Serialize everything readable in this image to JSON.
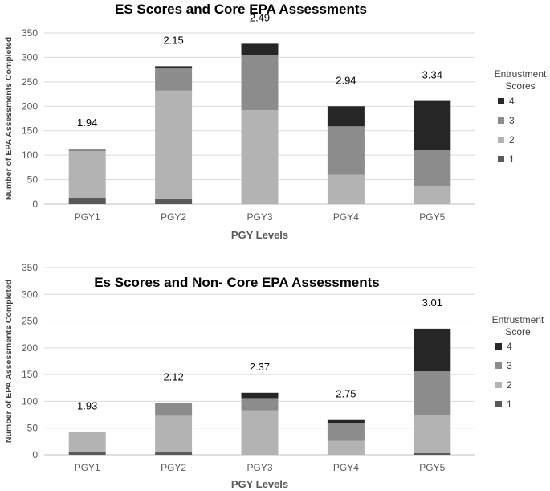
{
  "chart_data": [
    {
      "type": "bar",
      "stacked": true,
      "title": "ES Scores and Core EPA Assessments",
      "xlabel": "PGY Levels",
      "ylabel": "Number of EPA Assessments Completed",
      "ylim": [
        0,
        350
      ],
      "yticks": [
        0,
        50,
        100,
        150,
        200,
        250,
        300,
        350
      ],
      "grid": true,
      "categories": [
        "PGY1",
        "PGY2",
        "PGY3",
        "PGY4",
        "PGY5"
      ],
      "series": [
        {
          "name": "1",
          "color": "#595959",
          "values": [
            12,
            10,
            0,
            0,
            0
          ]
        },
        {
          "name": "2",
          "color": "#b3b3b3",
          "values": [
            96,
            222,
            192,
            60,
            36
          ]
        },
        {
          "name": "3",
          "color": "#8c8c8c",
          "values": [
            5,
            47,
            113,
            99,
            74
          ]
        },
        {
          "name": "4",
          "color": "#262626",
          "values": [
            0,
            3,
            23,
            41,
            101
          ]
        }
      ],
      "data_labels": [
        "1.94",
        "2.15",
        "2.49",
        "2.94",
        "3.34"
      ],
      "legend": {
        "title_lines": [
          "Entrustment",
          "Scores"
        ],
        "placement": "right",
        "order": [
          "4",
          "3",
          "2",
          "1"
        ]
      }
    },
    {
      "type": "bar",
      "stacked": true,
      "title": "Es Scores and Non- Core EPA Assessments",
      "xlabel": "PGY Levels",
      "ylabel": "Number of EPA Assessments Completed",
      "ylim": [
        0,
        350
      ],
      "yticks": [
        0,
        50,
        100,
        150,
        200,
        250,
        300,
        350
      ],
      "grid": true,
      "categories": [
        "PGY1",
        "PGY2",
        "PGY3",
        "PGY4",
        "PGY5"
      ],
      "series": [
        {
          "name": "1",
          "color": "#595959",
          "values": [
            5,
            5,
            0,
            0,
            3
          ]
        },
        {
          "name": "2",
          "color": "#b3b3b3",
          "values": [
            37,
            68,
            83,
            26,
            72
          ]
        },
        {
          "name": "3",
          "color": "#8c8c8c",
          "values": [
            1,
            23,
            23,
            34,
            81
          ]
        },
        {
          "name": "4",
          "color": "#262626",
          "values": [
            0,
            1,
            10,
            5,
            80
          ]
        }
      ],
      "data_labels": [
        "1.93",
        "2.12",
        "2.37",
        "2.75",
        "3.01"
      ],
      "legend": {
        "title_lines": [
          "Entrustment",
          "Score"
        ],
        "placement": "right",
        "order": [
          "4",
          "3",
          "2",
          "1"
        ]
      }
    }
  ]
}
